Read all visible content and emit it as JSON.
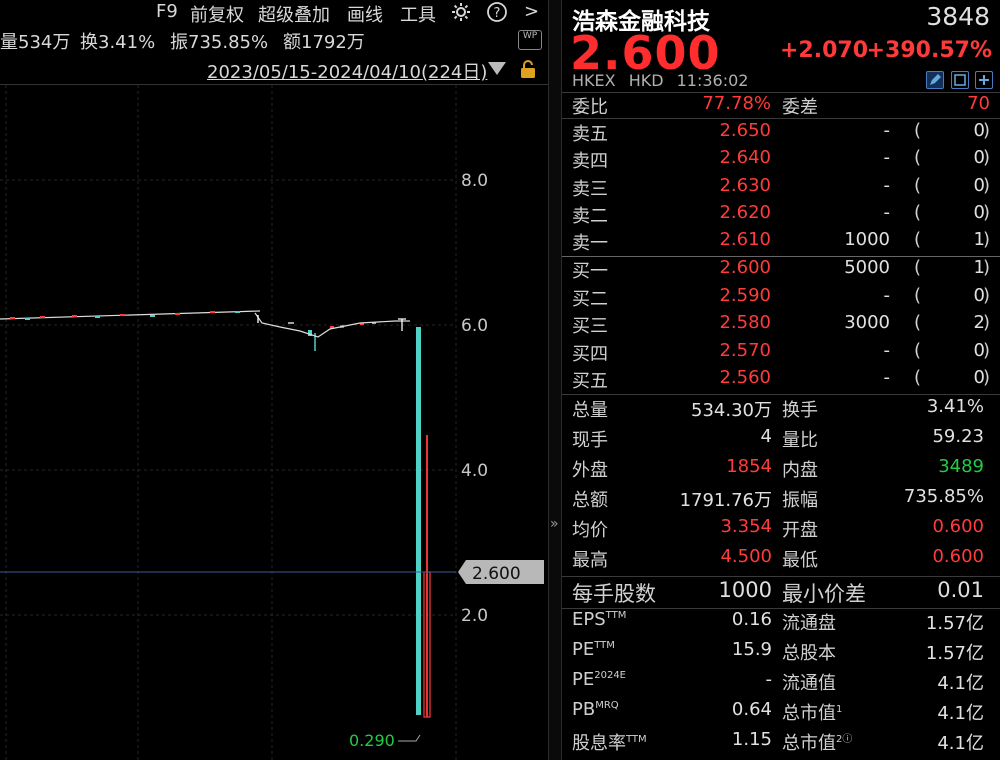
{
  "toolbar": {
    "f9": "F9",
    "adjust": "前复权",
    "overlay": "超级叠加",
    "draw": "画线",
    "tools": "工具",
    "more": ">"
  },
  "stats": {
    "volume": "量534万",
    "turnover": "换3.41%",
    "amplitude": "振735.85%",
    "amount": "额1792万"
  },
  "wp_badge": "WP",
  "date_range": "2023/05/15-2024/04/10(224日)",
  "axis": {
    "ticks": [
      "8.0",
      "6.0",
      "4.0",
      "2.0"
    ],
    "current_price_label": "2.600",
    "low_label": "0.290"
  },
  "chart_data": {
    "type": "candlestick",
    "yticks": [
      8.0,
      6.0,
      4.0,
      2.0
    ],
    "current_price": 2.6,
    "period_low": 0.29,
    "last_candle": {
      "open": 0.6,
      "high": 4.5,
      "low": 0.6,
      "close": 2.6
    }
  },
  "quote": {
    "name": "浩森金融科技",
    "code": "3848",
    "price": "2.600",
    "change": "+2.070",
    "change_pct": "+390.57%",
    "exchange": "HKEX",
    "currency": "HKD",
    "time": "11:36:02",
    "weibi_label": "委比",
    "weibi_value": "77.78%",
    "weicha_label": "委差",
    "weicha_value": "70",
    "asks": [
      {
        "label": "卖五",
        "price": "2.650",
        "volume": "-",
        "count": "0"
      },
      {
        "label": "卖四",
        "price": "2.640",
        "volume": "-",
        "count": "0"
      },
      {
        "label": "卖三",
        "price": "2.630",
        "volume": "-",
        "count": "0"
      },
      {
        "label": "卖二",
        "price": "2.620",
        "volume": "-",
        "count": "0"
      },
      {
        "label": "卖一",
        "price": "2.610",
        "volume": "1000",
        "count": "1"
      }
    ],
    "bids": [
      {
        "label": "买一",
        "price": "2.600",
        "volume": "5000",
        "count": "1"
      },
      {
        "label": "买二",
        "price": "2.590",
        "volume": "-",
        "count": "0"
      },
      {
        "label": "买三",
        "price": "2.580",
        "volume": "3000",
        "count": "2"
      },
      {
        "label": "买四",
        "price": "2.570",
        "volume": "-",
        "count": "0"
      },
      {
        "label": "买五",
        "price": "2.560",
        "volume": "-",
        "count": "0"
      }
    ],
    "paren_open": "(",
    "paren_close": ")",
    "stats": [
      {
        "l1": "总量",
        "v1": "534.30万",
        "l2": "换手",
        "v2": "3.41%",
        "c1": "",
        "c2": ""
      },
      {
        "l1": "现手",
        "v1": "4",
        "l2": "量比",
        "v2": "59.23",
        "c1": "",
        "c2": ""
      },
      {
        "l1": "外盘",
        "v1": "1854",
        "l2": "内盘",
        "v2": "3489",
        "c1": "red",
        "c2": "green"
      },
      {
        "l1": "总额",
        "v1": "1791.76万",
        "l2": "振幅",
        "v2": "735.85%",
        "c1": "",
        "c2": ""
      },
      {
        "l1": "均价",
        "v1": "3.354",
        "l2": "开盘",
        "v2": "0.600",
        "c1": "red",
        "c2": "red"
      },
      {
        "l1": "最高",
        "v1": "4.500",
        "l2": "最低",
        "v2": "0.600",
        "c1": "red",
        "c2": "red"
      }
    ],
    "lot": {
      "l1": "每手股数",
      "v1": "1000",
      "l2": "最小价差",
      "v2": "0.01"
    },
    "fundamentals": [
      {
        "l1": "EPS",
        "s1": "TTM",
        "v1": "0.16",
        "l2": "流通盘",
        "s2": "",
        "v2": "1.57亿"
      },
      {
        "l1": "PE",
        "s1": "TTM",
        "v1": "15.9",
        "l2": "总股本",
        "s2": "",
        "v2": "1.57亿"
      },
      {
        "l1": "PE",
        "s1": "2024E",
        "v1": "-",
        "l2": "流通值",
        "s2": "",
        "v2": "4.1亿"
      },
      {
        "l1": "PB",
        "s1": "MRQ",
        "v1": "0.64",
        "l2": "总市值",
        "s2": "1",
        "v2": "4.1亿"
      },
      {
        "l1": "股息率",
        "s1": "TTM",
        "v1": "1.15",
        "l2": "总市值",
        "s2": "2ⓘ",
        "v2": "4.1亿"
      }
    ]
  },
  "colors": {
    "up": "#ff3b3b",
    "down": "#22cc44",
    "bg": "#000000",
    "cyan_candle": "#4fd1c5"
  }
}
